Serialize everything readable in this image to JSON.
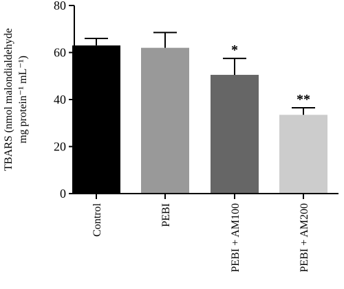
{
  "chart_data": {
    "type": "bar",
    "categories": [
      "Control",
      "PEBI",
      "PEBI + AM100",
      "PEBI + AM200"
    ],
    "values": [
      63,
      62,
      50.5,
      33.5
    ],
    "errors": [
      3,
      6.5,
      7,
      3
    ],
    "annotations": [
      "",
      "",
      "*",
      "**"
    ],
    "colors": [
      "#000000",
      "#999999",
      "#666666",
      "#cccccc"
    ],
    "ylabel_line1": "TBARS (nmol malondialdehyde",
    "ylabel_line2": "mg protein⁻¹ mL⁻¹)",
    "xlabel": "",
    "title": "",
    "ylim": [
      0,
      80
    ],
    "yticks": [
      0,
      20,
      40,
      60,
      80
    ],
    "grid": false,
    "legend": "none"
  }
}
